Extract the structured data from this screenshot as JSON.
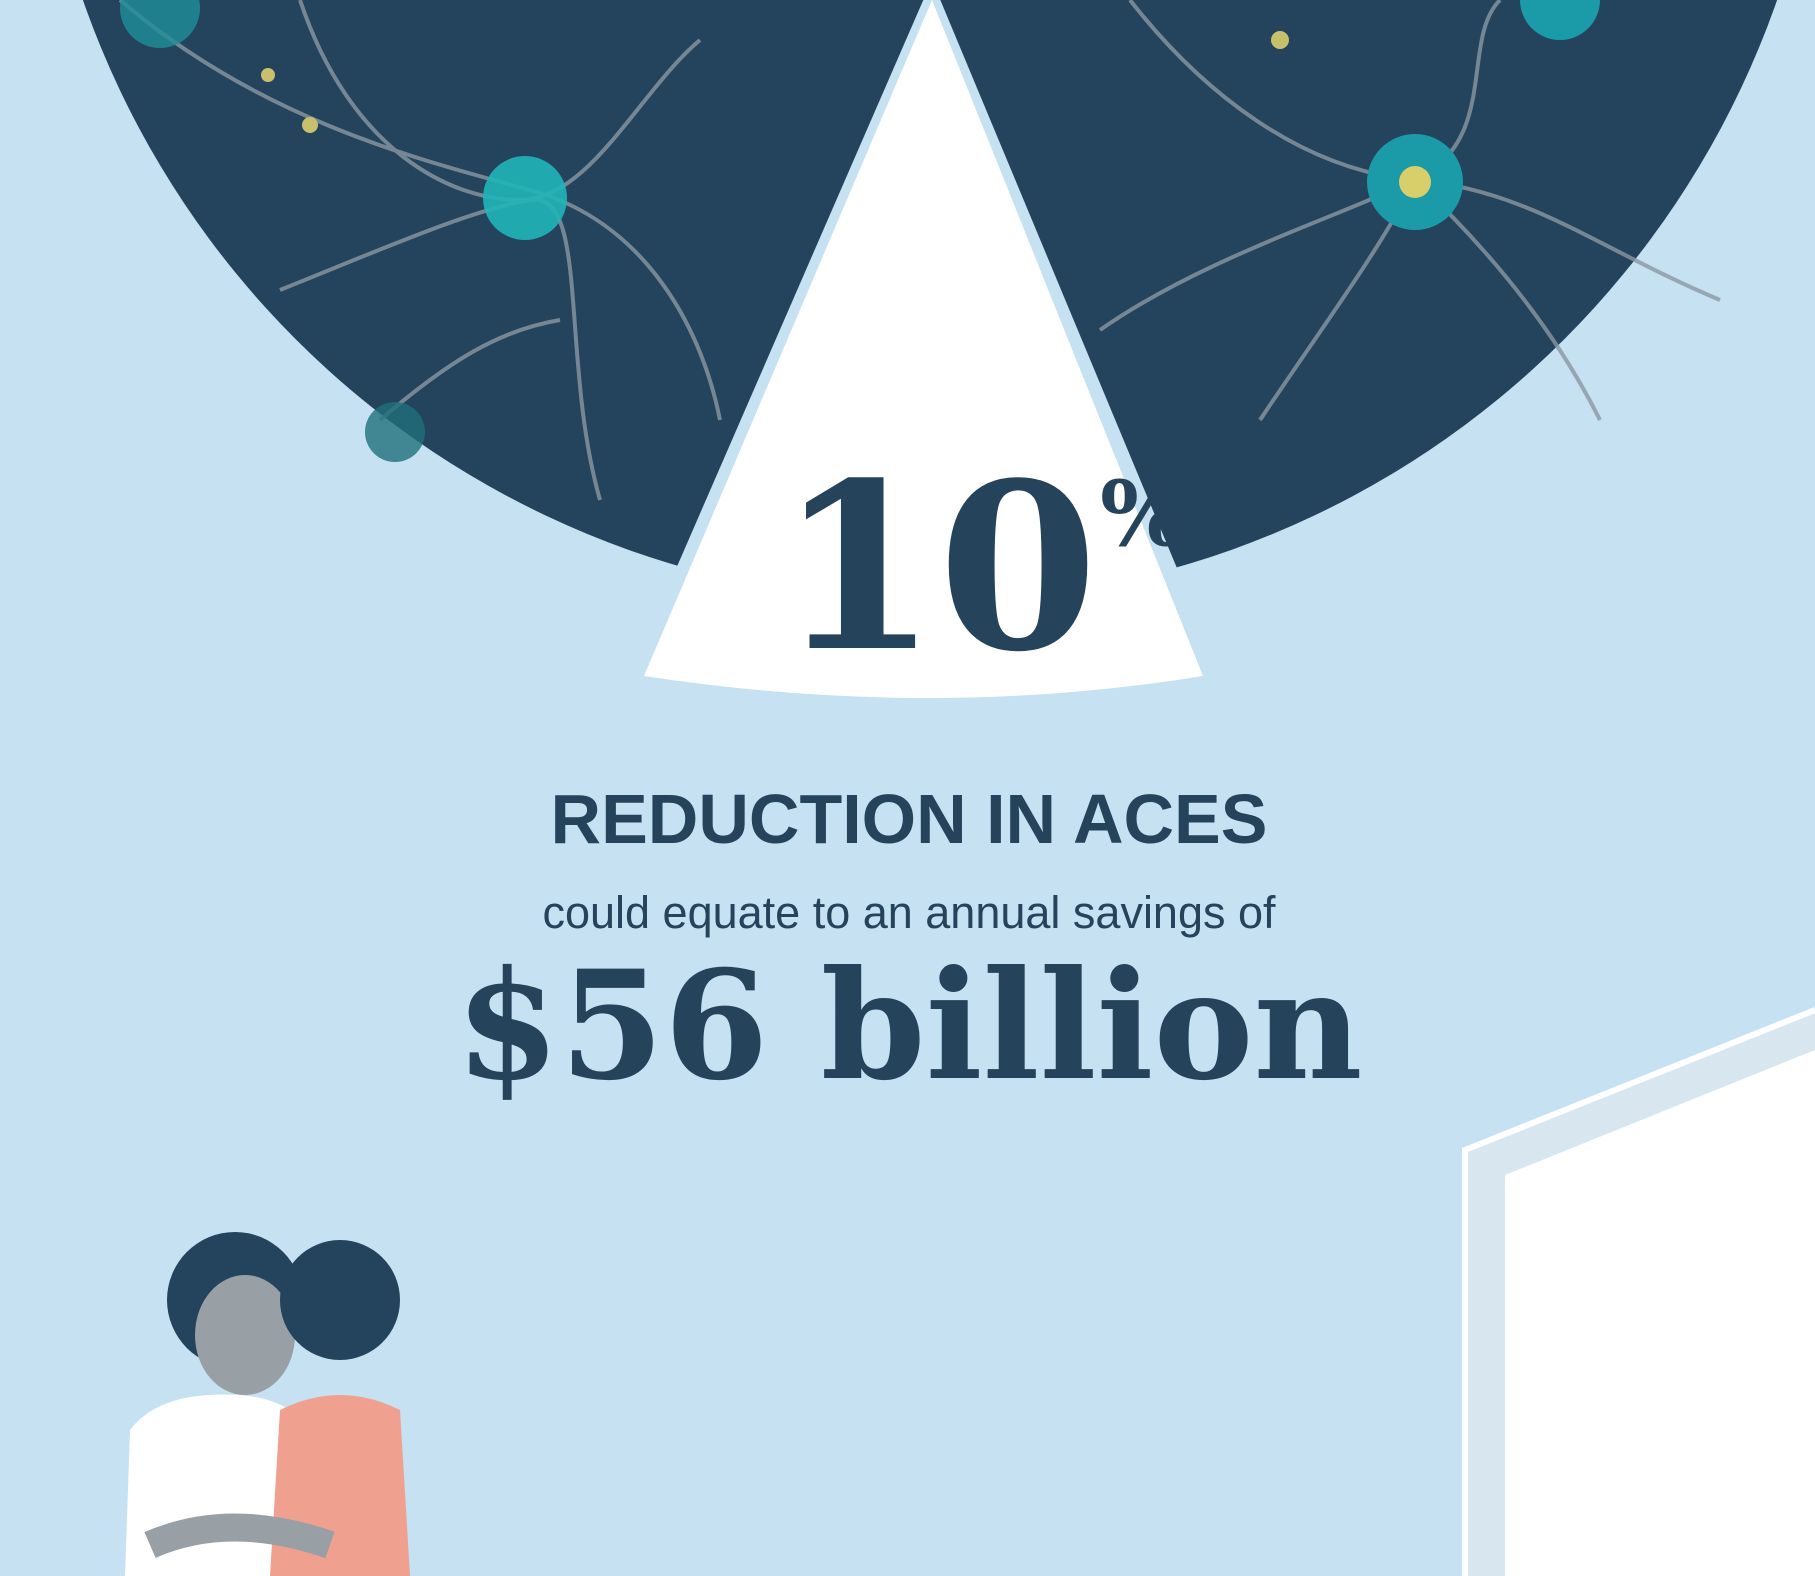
{
  "headline": {
    "number": "10",
    "symbol": "%"
  },
  "label": "REDUCTION IN ACES",
  "subtitle": "could equate to an annual savings of",
  "amount": "$56 billion"
}
